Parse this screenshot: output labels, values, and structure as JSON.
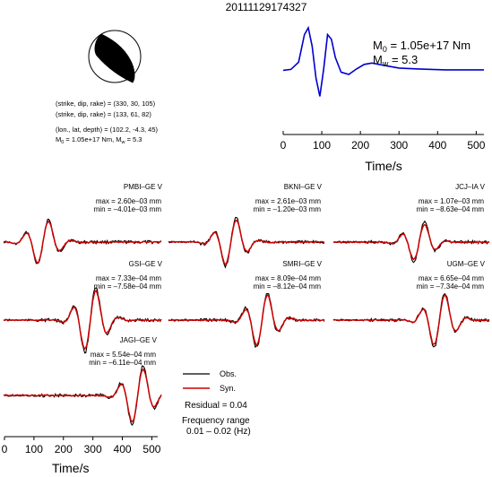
{
  "title": "20111129174327",
  "mechanism": {
    "line1": "(strike, dip, rake) = (330, 30, 105)",
    "line2": "(strike, dip, rake) = (133, 61, 82)",
    "line3": "(lon., lat, depth) = (102.2, -4.3, 45)",
    "line4_prefix": "M",
    "line4_sub": "0",
    "line4_suffix": " = 1.05e+17 Nm, M",
    "line4_sub2": "w",
    "line4_end": " = 5.3"
  },
  "stf": {
    "m0_prefix": "M",
    "m0_sub": "0",
    "m0_value": " = 1.05e+17 Nm",
    "mw_prefix": "M",
    "mw_sub": "w",
    "mw_value": " = 5.3",
    "xlabel": "Time/s",
    "xticks": [
      "0",
      "100",
      "200",
      "300",
      "400",
      "500"
    ],
    "color": "#0000cc"
  },
  "stations": [
    {
      "name": "PMBI–GE V",
      "max": "max = 2.60e–03 mm",
      "min": "min = –4.01e–03 mm"
    },
    {
      "name": "BKNI–GE V",
      "max": "max = 2.61e–03 mm",
      "min": "min = –1.20e–03 mm"
    },
    {
      "name": "JCJ–IA V",
      "max": "max = 1.07e–03 mm",
      "min": "min = –8.63e–04 mm"
    },
    {
      "name": "GSI–GE V",
      "max": "max = 7.33e–04 mm",
      "min": "min = –7.58e–04 mm"
    },
    {
      "name": "SMRI–GE V",
      "max": "max = 8.09e–04 mm",
      "min": "min = –8.12e–04 mm"
    },
    {
      "name": "UGM–GE V",
      "max": "max = 6.65e–04 mm",
      "min": "min = –7.34e–04 mm"
    },
    {
      "name": "JAGI–GE V",
      "max": "max = 5.54e–04 mm",
      "min": "min = –6.11e–04 mm"
    }
  ],
  "legend": {
    "obs": "Obs.",
    "syn": "Syn.",
    "obs_color": "#000000",
    "syn_color": "#cc0000"
  },
  "residual": "Residual = 0.04",
  "freq_label": "Frequency range",
  "freq_value": "0.01 – 0.02 (Hz)",
  "bottom_axis": {
    "xlabel": "Time/s",
    "xticks": [
      "0",
      "100",
      "200",
      "300",
      "400",
      "500"
    ]
  },
  "chart_data": [
    {
      "type": "line",
      "title": "",
      "xlabel": "Time/s",
      "ylabel": "",
      "xlim": [
        0,
        520
      ],
      "series": [
        {
          "x": [
            0,
            20,
            40,
            55,
            65,
            75,
            85,
            95,
            105,
            115,
            125,
            135,
            150,
            170,
            190,
            210,
            230,
            260,
            300,
            350,
            420,
            520
          ],
          "values": [
            0.07,
            0.09,
            0.25,
            0.85,
            1.0,
            0.6,
            -0.1,
            -0.5,
            0.1,
            0.85,
            0.75,
            0.35,
            0.03,
            -0.02,
            0.1,
            0.2,
            0.23,
            0.18,
            0.12,
            0.1,
            0.08,
            0.08
          ]
        }
      ]
    },
    {
      "type": "line",
      "title": "",
      "xlabel": "Time/s",
      "ylabel": "",
      "xlim": [
        0,
        520
      ],
      "series": [
        {
          "name": "Obs.",
          "x": [
            0,
            520
          ],
          "values": [
            0,
            0
          ]
        },
        {
          "name": "Syn.",
          "x": [
            0,
            520
          ],
          "values": [
            0,
            0
          ]
        }
      ]
    }
  ]
}
